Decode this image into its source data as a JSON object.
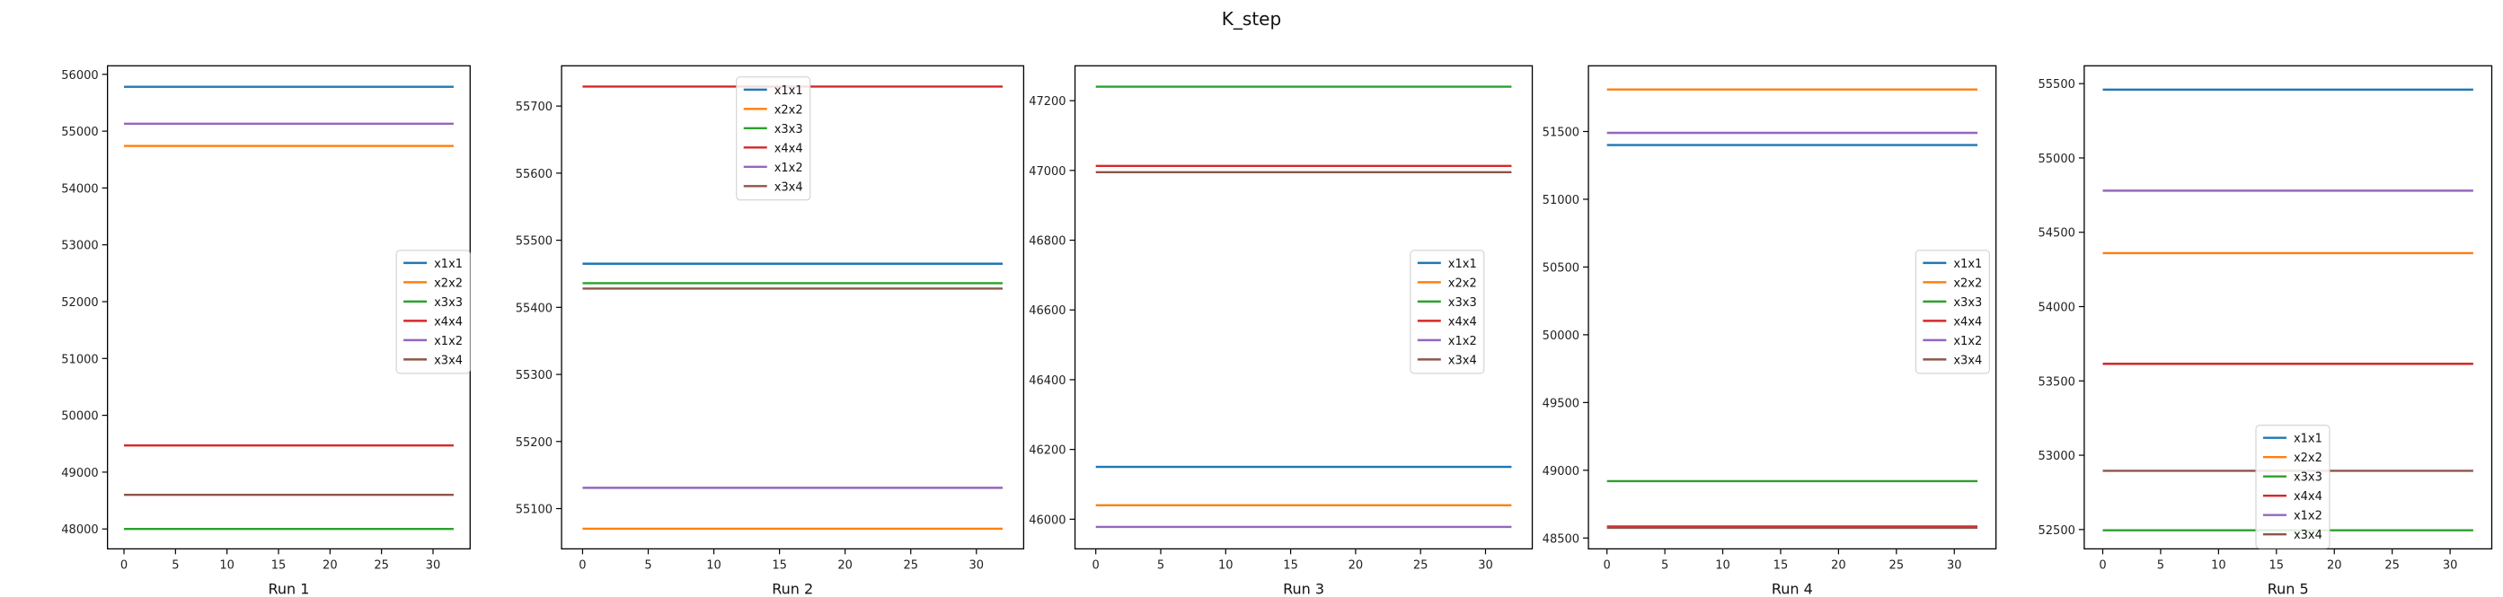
{
  "figure": {
    "title": "K_step"
  },
  "legend_labels": [
    "x1x1",
    "x2x2",
    "x3x3",
    "x4x4",
    "x1x2",
    "x3x4"
  ],
  "colors": {
    "x1x1": "#1f77b4",
    "x2x2": "#ff7f0e",
    "x3x3": "#2ca02c",
    "x4x4": "#d62728",
    "x1x2": "#9467bd",
    "x3x4": "#8c564b"
  },
  "chart_data": [
    {
      "type": "line",
      "xlabel": "Run 1",
      "x_range": [
        0,
        32
      ],
      "xlim": [
        -1.6,
        33.6
      ],
      "ylim": [
        47650,
        56150
      ],
      "xticks": [
        0,
        5,
        10,
        15,
        20,
        25,
        30
      ],
      "yticks": [
        48000,
        49000,
        50000,
        51000,
        52000,
        53000,
        54000,
        55000,
        56000
      ],
      "legend_position": "center-right",
      "grid": false,
      "series": [
        {
          "name": "x1x1",
          "value": 55780
        },
        {
          "name": "x2x2",
          "value": 54740
        },
        {
          "name": "x3x3",
          "value": 48000
        },
        {
          "name": "x4x4",
          "value": 49470
        },
        {
          "name": "x1x2",
          "value": 55130
        },
        {
          "name": "x3x4",
          "value": 48600
        }
      ]
    },
    {
      "type": "line",
      "xlabel": "Run 2",
      "x_range": [
        0,
        32
      ],
      "xlim": [
        -1.6,
        33.6
      ],
      "ylim": [
        55040,
        55760
      ],
      "xticks": [
        0,
        5,
        10,
        15,
        20,
        25,
        30
      ],
      "yticks": [
        55100,
        55200,
        55300,
        55400,
        55500,
        55600,
        55700
      ],
      "legend_position": "top-center",
      "grid": false,
      "series": [
        {
          "name": "x1x1",
          "value": 55465
        },
        {
          "name": "x2x2",
          "value": 55070
        },
        {
          "name": "x3x3",
          "value": 55436
        },
        {
          "name": "x4x4",
          "value": 55729
        },
        {
          "name": "x1x2",
          "value": 55131
        },
        {
          "name": "x3x4",
          "value": 55428
        }
      ]
    },
    {
      "type": "line",
      "xlabel": "Run 3",
      "x_range": [
        0,
        32
      ],
      "xlim": [
        -1.6,
        33.6
      ],
      "ylim": [
        45915,
        47300
      ],
      "xticks": [
        0,
        5,
        10,
        15,
        20,
        25,
        30
      ],
      "yticks": [
        46000,
        46200,
        46400,
        46600,
        46800,
        47000,
        47200
      ],
      "legend_position": "center-right",
      "grid": false,
      "series": [
        {
          "name": "x1x1",
          "value": 46150
        },
        {
          "name": "x2x2",
          "value": 46040
        },
        {
          "name": "x3x3",
          "value": 47240
        },
        {
          "name": "x4x4",
          "value": 47013
        },
        {
          "name": "x1x2",
          "value": 45978
        },
        {
          "name": "x3x4",
          "value": 46995
        }
      ]
    },
    {
      "type": "line",
      "xlabel": "Run 4",
      "x_range": [
        0,
        32
      ],
      "xlim": [
        -1.6,
        33.6
      ],
      "ylim": [
        48420,
        51985
      ],
      "xticks": [
        0,
        5,
        10,
        15,
        20,
        25,
        30
      ],
      "yticks": [
        48500,
        49000,
        49500,
        50000,
        50500,
        51000,
        51500
      ],
      "legend_position": "center-right",
      "grid": false,
      "series": [
        {
          "name": "x1x1",
          "value": 51400
        },
        {
          "name": "x2x2",
          "value": 51810
        },
        {
          "name": "x3x3",
          "value": 48920
        },
        {
          "name": "x4x4",
          "value": 48585
        },
        {
          "name": "x1x2",
          "value": 51490
        },
        {
          "name": "x3x4",
          "value": 48575
        }
      ]
    },
    {
      "type": "line",
      "xlabel": "Run 5",
      "x_range": [
        0,
        32
      ],
      "xlim": [
        -1.6,
        33.6
      ],
      "ylim": [
        52370,
        55620
      ],
      "xticks": [
        0,
        5,
        10,
        15,
        20,
        25,
        30
      ],
      "yticks": [
        52500,
        53000,
        53500,
        54000,
        54500,
        55000,
        55500
      ],
      "legend_position": "lower-center",
      "grid": false,
      "series": [
        {
          "name": "x1x1",
          "value": 55460
        },
        {
          "name": "x2x2",
          "value": 54360
        },
        {
          "name": "x3x3",
          "value": 52495
        },
        {
          "name": "x4x4",
          "value": 53615
        },
        {
          "name": "x1x2",
          "value": 54780
        },
        {
          "name": "x3x4",
          "value": 52895
        }
      ]
    }
  ]
}
